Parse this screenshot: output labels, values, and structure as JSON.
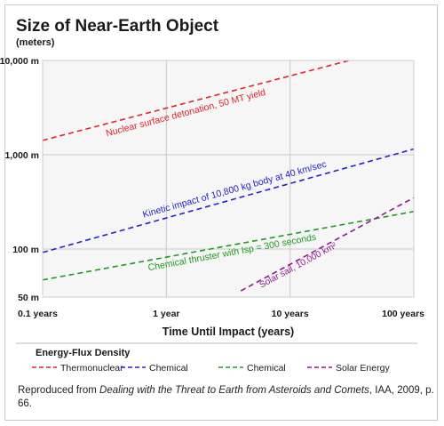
{
  "chart_data": {
    "type": "line",
    "title": "Size of Near-Earth Object",
    "ylabel": "(meters)",
    "xlabel": "Time Until Impact (years)",
    "x_scale": "log",
    "y_scale": "log",
    "xlim": [
      0.1,
      100
    ],
    "ylim": [
      50,
      10000
    ],
    "x_ticks": [
      {
        "value": 0.1,
        "label": "0.1 years"
      },
      {
        "value": 1,
        "label": "1 year"
      },
      {
        "value": 10,
        "label": "10 years"
      },
      {
        "value": 100,
        "label": "100 years"
      }
    ],
    "y_ticks": [
      {
        "value": 10000,
        "label": "10,000 m"
      },
      {
        "value": 1000,
        "label": "1,000 m"
      },
      {
        "value": 100,
        "label": "100 m"
      },
      {
        "value": 50,
        "label": "50 m"
      }
    ],
    "grid": true,
    "series": [
      {
        "name": "Thermonuclear",
        "color": "#e0242b",
        "style": "dashed",
        "annotation": "Nuclear surface detonation, 50 MT yield",
        "points": [
          [
            0.1,
            1420
          ],
          [
            30,
            10000
          ]
        ]
      },
      {
        "name": "Chemical",
        "color": "#2323c8",
        "style": "dashed",
        "annotation": "Kinetic impact of 10,800 kg body at 40 km/sec",
        "points": [
          [
            0.1,
            92
          ],
          [
            100,
            1150
          ]
        ]
      },
      {
        "name": "Chemical",
        "color": "#1f9a1f",
        "style": "dashed",
        "annotation": "Chemical thruster with Isp = 300 seconds",
        "points": [
          [
            0.1,
            47
          ],
          [
            100,
            250
          ]
        ]
      },
      {
        "name": "Solar Energy",
        "color": "#8e1a8e",
        "style": "dashed",
        "annotation": "Solar sail, 10,000 km²",
        "points": [
          [
            4,
            36
          ],
          [
            100,
            350
          ]
        ]
      }
    ],
    "legend": {
      "title": "Energy-Flux Density",
      "position": "bottom",
      "entries": [
        "Thermonuclear",
        "Chemical",
        "Chemical",
        "Solar Energy"
      ]
    }
  },
  "caption": {
    "prefix": "Reproduced from ",
    "source_title": "Dealing with the Threat to Earth from Asteroids and Comets",
    "suffix": ", IAA, 2009, p. 66."
  }
}
